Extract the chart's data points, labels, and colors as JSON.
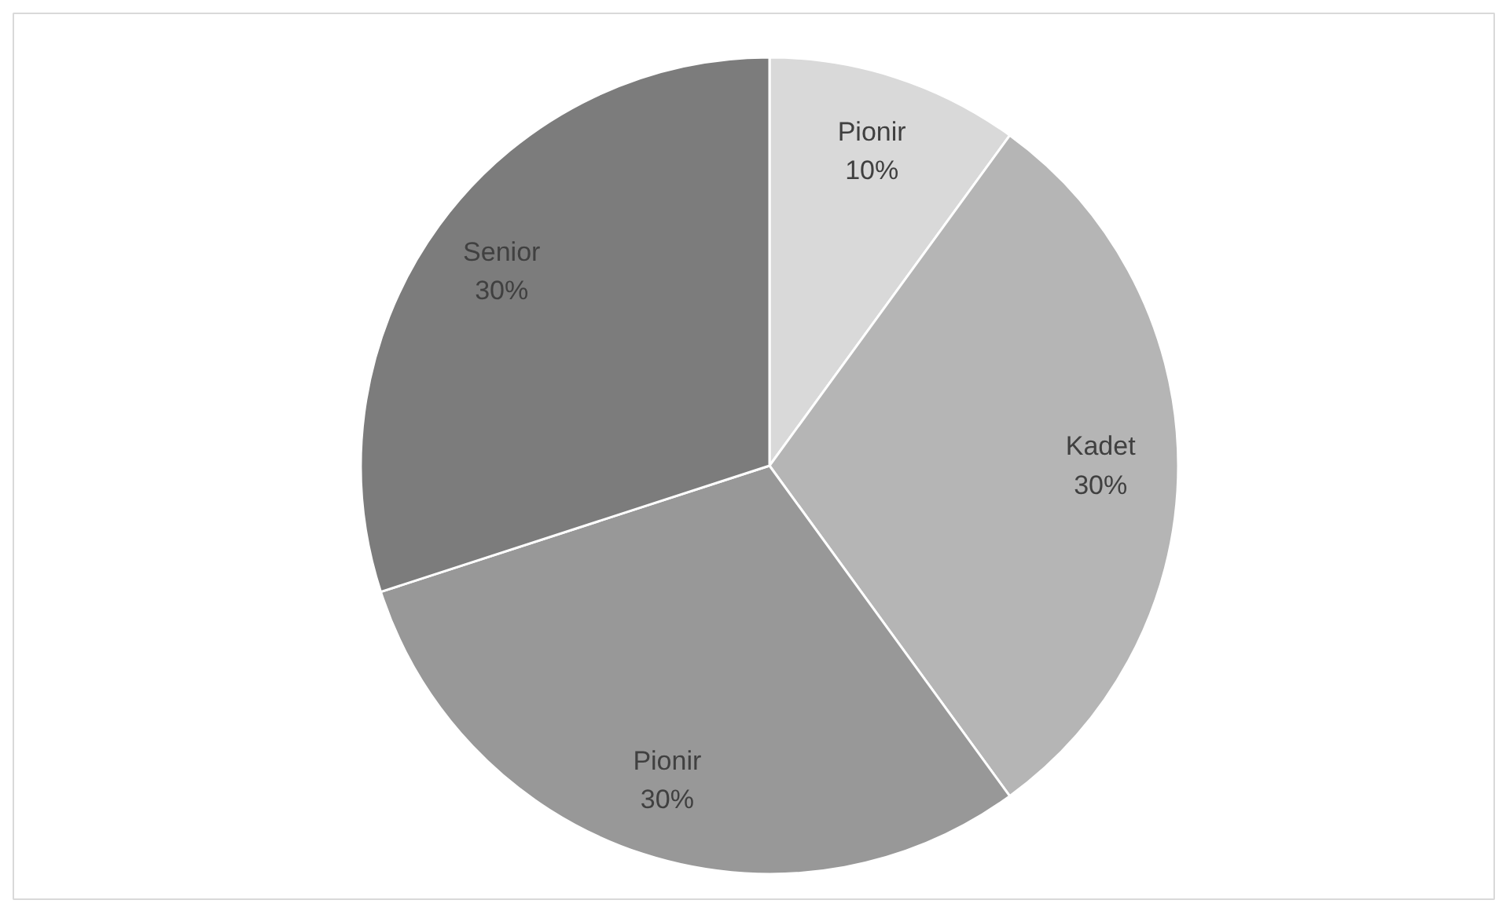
{
  "chart_data": {
    "type": "pie",
    "categories": [
      "Pionir",
      "Kadet",
      "Pionir",
      "Senior"
    ],
    "values": [
      10,
      30,
      30,
      30
    ],
    "colors": [
      "#d9d9d9",
      "#b5b5b5",
      "#989898",
      "#7c7c7c"
    ],
    "value_labels": [
      "10%",
      "30%",
      "30%",
      "30%"
    ]
  }
}
